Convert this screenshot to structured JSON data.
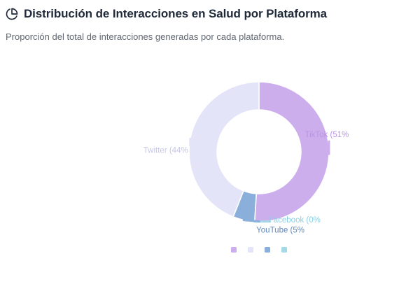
{
  "header": {
    "title": "Distribución de Interacciones en Salud por Plataforma",
    "subtitle": "Proporción del total de interacciones generadas por cada plataforma.",
    "icon": "pie-chart-icon"
  },
  "chart_data": {
    "type": "pie",
    "variant": "donut",
    "title": "Distribución de Interacciones en Salud por Plataforma",
    "subtitle": "Proporción del total de interacciones generadas por cada plataforma.",
    "slices": [
      {
        "name": "TikTok",
        "value": 51,
        "label": "TikTok (51%",
        "color": "#cdaeed",
        "label_color": "#b894e3"
      },
      {
        "name": "YouTube",
        "value": 5,
        "label": "YouTube (5%",
        "color": "#8aafda",
        "label_color": "#5f88c2"
      },
      {
        "name": "Facebook",
        "value": 0,
        "label": "Facebook (0%",
        "color": "#a6d9e8",
        "label_color": "#8ccfe3"
      },
      {
        "name": "Twitter",
        "value": 44,
        "label": "Twitter (44%",
        "color": "#e4e4f8",
        "label_color": "#c7c7e6"
      }
    ],
    "legend": {
      "placement": "bottom-center",
      "show_text": false
    },
    "legend_colors": [
      "#cdaeed",
      "#e4e4f8",
      "#8aafda",
      "#a6d9e8"
    ]
  }
}
